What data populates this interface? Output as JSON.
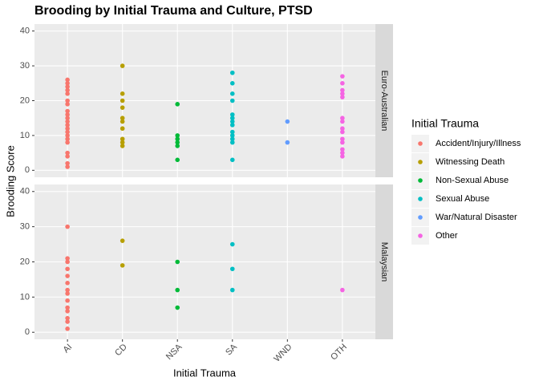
{
  "chart_data": {
    "type": "strip",
    "title": "Brooding by Initial Trauma and Culture, PTSD",
    "x_label": "Initial Trauma",
    "y_label": "Brooding Score",
    "legend_title": "Initial Trauma",
    "categories": [
      "AI",
      "CD",
      "NSA",
      "SA",
      "WND",
      "OTH"
    ],
    "series": [
      {
        "name": "Accident/Injury/Illness",
        "color": "#F8766D"
      },
      {
        "name": "Witnessing Death",
        "color": "#B79F00"
      },
      {
        "name": "Non-Sexual Abuse",
        "color": "#00BA38"
      },
      {
        "name": "Sexual Abuse",
        "color": "#00BFC4"
      },
      {
        "name": "War/Natural Disaster",
        "color": "#619CFF"
      },
      {
        "name": "Other",
        "color": "#F564E3"
      }
    ],
    "ylim": [
      -2,
      42
    ],
    "yticks": [
      0,
      10,
      20,
      30,
      40
    ],
    "grid": true,
    "facets": [
      {
        "label": "Euro-Australian",
        "values": [
          [
            1,
            2,
            4,
            5,
            8,
            9,
            10,
            11,
            12,
            13,
            14,
            15,
            16,
            17,
            19,
            20,
            22,
            23,
            24,
            25,
            26
          ],
          [
            7,
            8,
            9,
            12,
            14,
            15,
            18,
            20,
            22,
            30
          ],
          [
            3,
            7,
            8,
            9,
            10,
            19
          ],
          [
            3,
            8,
            9,
            10,
            11,
            13,
            14,
            15,
            16,
            20,
            22,
            25,
            28
          ],
          [
            8,
            14
          ],
          [
            4,
            5,
            6,
            8,
            9,
            11,
            12,
            14,
            15,
            21,
            22,
            23,
            25,
            27
          ]
        ]
      },
      {
        "label": "Malaysian",
        "values": [
          [
            1,
            3,
            4,
            6,
            7,
            9,
            11,
            12,
            14,
            16,
            18,
            20,
            21,
            30
          ],
          [
            19,
            26
          ],
          [
            7,
            12,
            20
          ],
          [
            12,
            18,
            25
          ],
          [],
          [
            12
          ]
        ]
      }
    ]
  }
}
